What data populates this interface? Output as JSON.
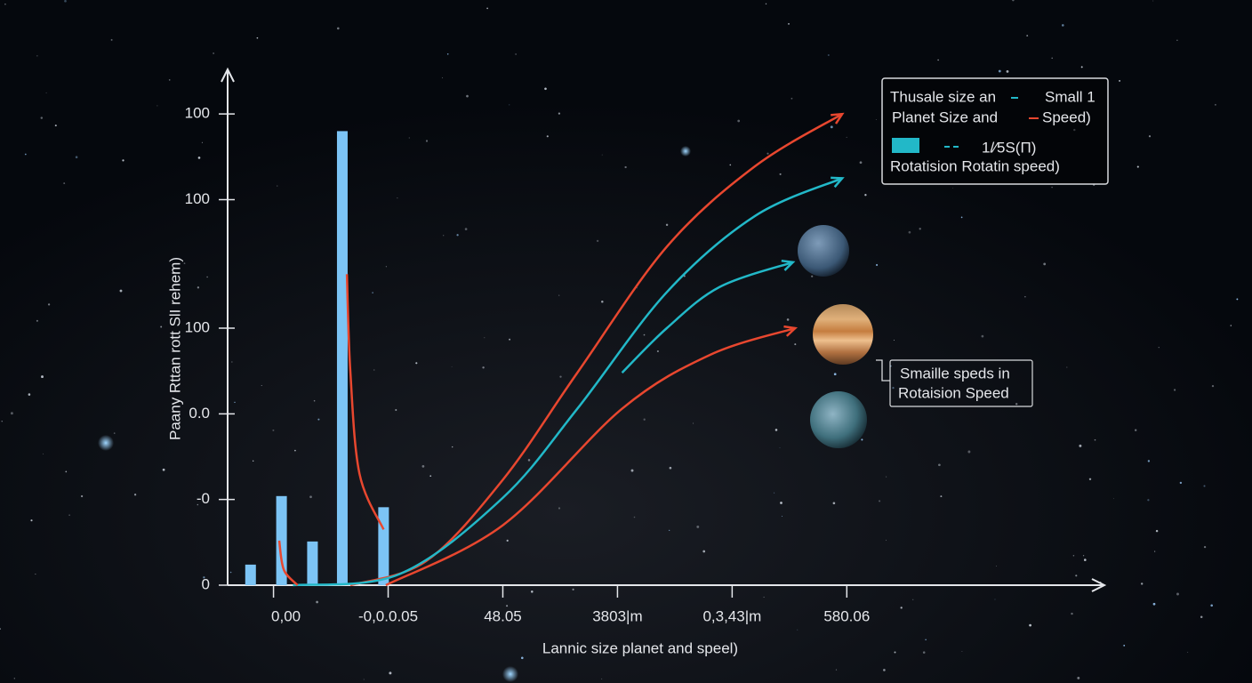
{
  "chart_data": {
    "type": "combo",
    "y_label": "Paany Rttan rott SlI rehem)",
    "x_label": "Lannic size planet and speel)",
    "xlim": [
      -0.4,
      7.2
    ],
    "ylim": [
      0,
      6
    ],
    "xticks": [
      {
        "value": 0,
        "label": "0,00"
      },
      {
        "value": 1,
        "label": "-0,0.0.05"
      },
      {
        "value": 2,
        "label": "48.05"
      },
      {
        "value": 3,
        "label": "3803|m"
      },
      {
        "value": 4,
        "label": "0,3,43|m"
      },
      {
        "value": 5,
        "label": "580.06"
      }
    ],
    "yticks": [
      0,
      {
        "value": 1,
        "label": "-0"
      },
      {
        "value": 2,
        "label": "0.0"
      },
      {
        "value": 3,
        "label": "100"
      },
      {
        "value": 4.5,
        "label": "100"
      },
      {
        "value": 5.5,
        "label": "100"
      }
    ],
    "series": [
      {
        "type": "bar",
        "color": "#7cc4f5",
        "x": [
          -0.2,
          0.07,
          0.34,
          0.6,
          0.96
        ],
        "values": [
          0.24,
          1.04,
          0.51,
          5.3,
          0.91
        ]
      },
      {
        "type": "line",
        "color": "#e8472f",
        "x": [
          0.67,
          1.33,
          2,
          2.65,
          3.43,
          4.2,
          4.96
        ],
        "values": [
          0,
          0.28,
          1.23,
          2.48,
          3.95,
          4.89,
          5.5
        ]
      },
      {
        "type": "line",
        "color": "#22b8c8",
        "x": [
          0.17,
          1.1,
          2,
          2.65,
          3.43,
          4.2,
          4.96
        ],
        "values": [
          0,
          0.13,
          1.02,
          2.06,
          3.42,
          4.31,
          4.75
        ]
      },
      {
        "type": "line",
        "color": "#22b8c8",
        "x": [
          3.04,
          3.43,
          3.89,
          4.53
        ],
        "values": [
          2.48,
          3.0,
          3.48,
          3.77
        ]
      },
      {
        "type": "line",
        "color": "#e8472f",
        "x": [
          0.98,
          2,
          3.04,
          3.81,
          4.55
        ],
        "values": [
          0,
          0.7,
          2.06,
          2.69,
          3.0
        ]
      },
      {
        "type": "line",
        "color": "#e8472f",
        "x": [
          0.64,
          0.67,
          0.75,
          0.96
        ],
        "values": [
          3.63,
          2.5,
          1.3,
          0.65
        ]
      },
      {
        "type": "line",
        "color": "#e8472f",
        "x": [
          0.05,
          0.09,
          0.21
        ],
        "values": [
          0.52,
          0.18,
          0
        ]
      }
    ],
    "legend": {
      "rows": [
        [
          "Thusale size an",
          "Small 1"
        ],
        [
          "Planet Size  and",
          "Speed)"
        ],
        [
          "1/⁄5S(Π)"
        ],
        [
          "Rotatision Rotatin speed)"
        ]
      ]
    },
    "annotation": [
      "Smaille speds in",
      "Rotaision Speed"
    ]
  }
}
